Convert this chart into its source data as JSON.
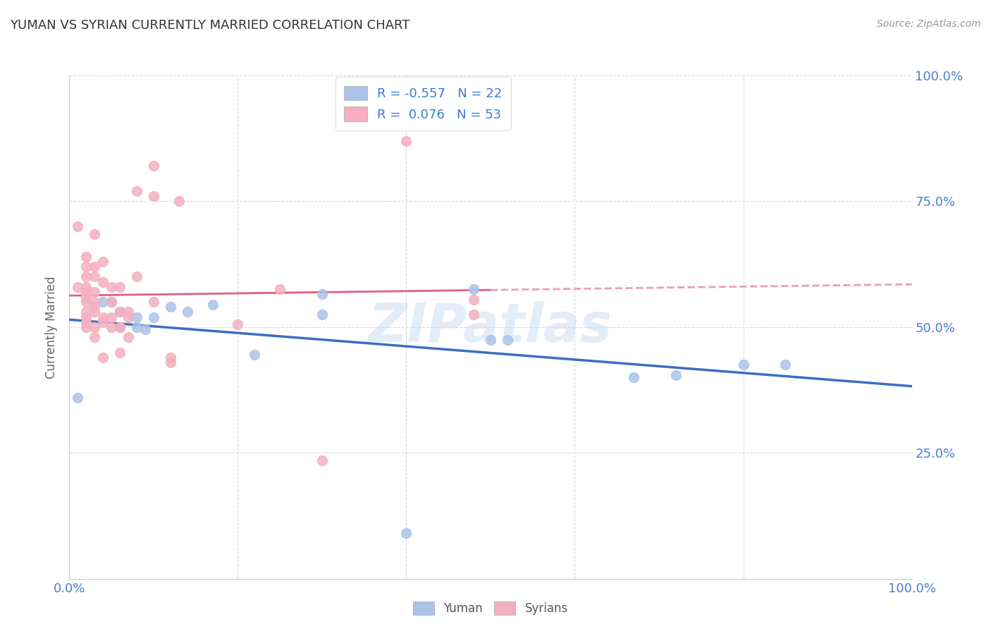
{
  "title": "YUMAN VS SYRIAN CURRENTLY MARRIED CORRELATION CHART",
  "source": "Source: ZipAtlas.com",
  "ylabel": "Currently Married",
  "xlim": [
    0.0,
    1.0
  ],
  "ylim": [
    0.0,
    1.0
  ],
  "watermark": "ZIPatlas",
  "blue_color": "#aac4e8",
  "pink_color": "#f5afc0",
  "blue_line_color": "#3a6fc4",
  "pink_line_color": "#e06080",
  "pink_dash_color": "#e8a0b8",
  "title_color": "#333333",
  "axis_label_color": "#4a7fd4",
  "yuman_points": [
    [
      0.01,
      0.36
    ],
    [
      0.04,
      0.55
    ],
    [
      0.05,
      0.55
    ],
    [
      0.06,
      0.53
    ],
    [
      0.06,
      0.5
    ],
    [
      0.08,
      0.52
    ],
    [
      0.08,
      0.5
    ],
    [
      0.09,
      0.495
    ],
    [
      0.1,
      0.52
    ],
    [
      0.12,
      0.54
    ],
    [
      0.14,
      0.53
    ],
    [
      0.17,
      0.545
    ],
    [
      0.22,
      0.445
    ],
    [
      0.3,
      0.565
    ],
    [
      0.3,
      0.525
    ],
    [
      0.48,
      0.575
    ],
    [
      0.5,
      0.475
    ],
    [
      0.52,
      0.475
    ],
    [
      0.67,
      0.4
    ],
    [
      0.72,
      0.405
    ],
    [
      0.8,
      0.425
    ],
    [
      0.85,
      0.425
    ],
    [
      0.4,
      0.09
    ]
  ],
  "syrian_points": [
    [
      0.01,
      0.7
    ],
    [
      0.01,
      0.58
    ],
    [
      0.02,
      0.64
    ],
    [
      0.02,
      0.62
    ],
    [
      0.02,
      0.6
    ],
    [
      0.02,
      0.58
    ],
    [
      0.02,
      0.57
    ],
    [
      0.02,
      0.56
    ],
    [
      0.02,
      0.55
    ],
    [
      0.02,
      0.53
    ],
    [
      0.02,
      0.52
    ],
    [
      0.02,
      0.51
    ],
    [
      0.02,
      0.5
    ],
    [
      0.03,
      0.685
    ],
    [
      0.03,
      0.62
    ],
    [
      0.03,
      0.6
    ],
    [
      0.03,
      0.57
    ],
    [
      0.03,
      0.55
    ],
    [
      0.03,
      0.54
    ],
    [
      0.03,
      0.53
    ],
    [
      0.03,
      0.5
    ],
    [
      0.03,
      0.48
    ],
    [
      0.04,
      0.63
    ],
    [
      0.04,
      0.59
    ],
    [
      0.04,
      0.52
    ],
    [
      0.04,
      0.51
    ],
    [
      0.04,
      0.44
    ],
    [
      0.05,
      0.58
    ],
    [
      0.05,
      0.55
    ],
    [
      0.05,
      0.52
    ],
    [
      0.05,
      0.5
    ],
    [
      0.06,
      0.58
    ],
    [
      0.06,
      0.53
    ],
    [
      0.06,
      0.5
    ],
    [
      0.06,
      0.45
    ],
    [
      0.07,
      0.53
    ],
    [
      0.07,
      0.52
    ],
    [
      0.07,
      0.48
    ],
    [
      0.08,
      0.77
    ],
    [
      0.08,
      0.6
    ],
    [
      0.1,
      0.55
    ],
    [
      0.1,
      0.76
    ],
    [
      0.12,
      0.43
    ],
    [
      0.12,
      0.44
    ],
    [
      0.13,
      0.75
    ],
    [
      0.2,
      0.505
    ],
    [
      0.25,
      0.575
    ],
    [
      0.3,
      0.235
    ],
    [
      0.4,
      0.87
    ],
    [
      0.48,
      0.555
    ],
    [
      0.48,
      0.525
    ],
    [
      0.1,
      0.82
    ]
  ]
}
